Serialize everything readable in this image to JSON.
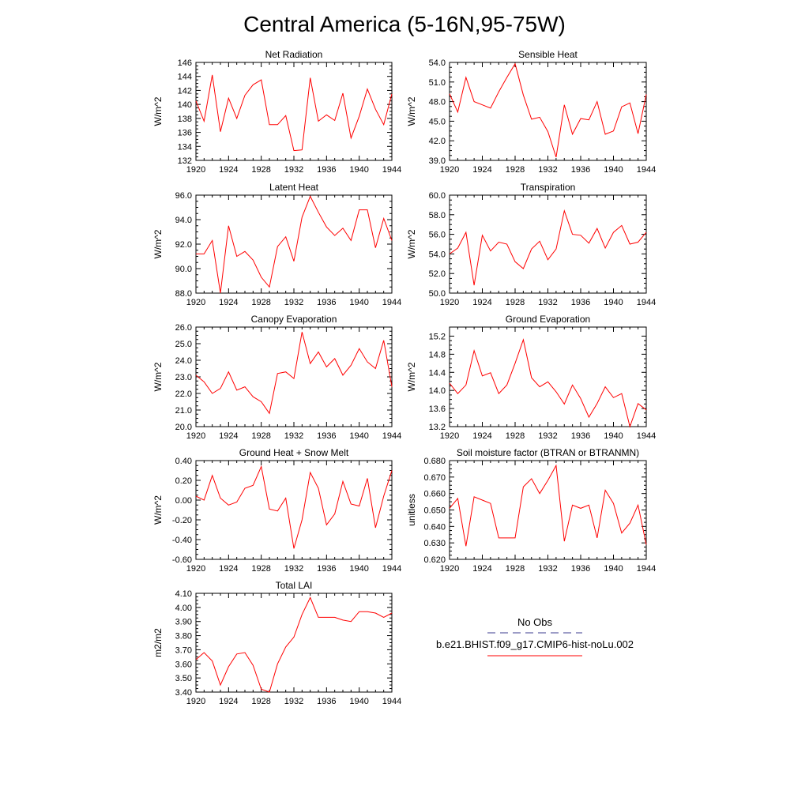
{
  "title": "Central America (5-16N,95-75W)",
  "colors": {
    "model": "#ff0000",
    "obs": "#3b3b8f",
    "axis": "#000000"
  },
  "legend": {
    "obs_label": "No Obs",
    "model_label": "b.e21.BHIST.f09_g17.CMIP6-hist-noLu.002"
  },
  "chart_data": [
    {
      "type": "line",
      "title": "Net Radiation",
      "ylabel": "W/m^2",
      "xlim": [
        1920,
        1944
      ],
      "ylim": [
        132,
        146
      ],
      "xticks": [
        1920,
        1924,
        1928,
        1932,
        1936,
        1940,
        1944
      ],
      "xtick_labels": [
        "1920",
        "1924",
        "1928",
        "1932",
        "1936",
        "1940",
        "1944"
      ],
      "yticks": [
        132,
        134,
        136,
        138,
        140,
        142,
        144,
        146
      ],
      "ytick_labels": [
        "132",
        "134",
        "136",
        "138",
        "140",
        "142",
        "144",
        "146"
      ],
      "x": [
        1920,
        1921,
        1922,
        1923,
        1924,
        1925,
        1926,
        1927,
        1928,
        1929,
        1930,
        1931,
        1932,
        1933,
        1934,
        1935,
        1936,
        1937,
        1938,
        1939,
        1940,
        1941,
        1942,
        1943,
        1944
      ],
      "series": [
        {
          "name": "b.e21.BHIST.f09_g17.CMIP6-hist-noLu.002",
          "values": [
            140.5,
            137.6,
            144.2,
            136.1,
            140.9,
            138.0,
            141.3,
            142.8,
            143.5,
            137.1,
            137.1,
            138.4,
            133.4,
            133.5,
            143.8,
            137.6,
            138.5,
            137.7,
            141.6,
            135.2,
            138.3,
            142.2,
            139.3,
            137.1,
            141.5
          ]
        }
      ]
    },
    {
      "type": "line",
      "title": "Sensible Heat",
      "ylabel": "W/m^2",
      "xlim": [
        1920,
        1944
      ],
      "ylim": [
        39.0,
        54.0
      ],
      "xticks": [
        1920,
        1924,
        1928,
        1932,
        1936,
        1940,
        1944
      ],
      "xtick_labels": [
        "1920",
        "1924",
        "1928",
        "1932",
        "1936",
        "1940",
        "1944"
      ],
      "yticks": [
        39.0,
        42.0,
        45.0,
        48.0,
        51.0,
        54.0
      ],
      "ytick_labels": [
        "39.0",
        "42.0",
        "45.0",
        "48.0",
        "51.0",
        "54.0"
      ],
      "x": [
        1920,
        1921,
        1922,
        1923,
        1924,
        1925,
        1926,
        1927,
        1928,
        1929,
        1930,
        1931,
        1932,
        1933,
        1934,
        1935,
        1936,
        1937,
        1938,
        1939,
        1940,
        1941,
        1942,
        1943,
        1944
      ],
      "series": [
        {
          "name": "b.e21.BHIST.f09_g17.CMIP6-hist-noLu.002",
          "values": [
            49.2,
            46.4,
            51.7,
            48.0,
            47.5,
            47.0,
            49.5,
            51.7,
            53.8,
            49.0,
            45.3,
            45.6,
            43.4,
            39.5,
            47.5,
            43.0,
            45.4,
            45.2,
            48.0,
            43.0,
            43.5,
            47.2,
            47.8,
            43.1,
            49.1
          ]
        }
      ]
    },
    {
      "type": "line",
      "title": "Latent Heat",
      "ylabel": "W/m^2",
      "xlim": [
        1920,
        1944
      ],
      "ylim": [
        88.0,
        96.0
      ],
      "xticks": [
        1920,
        1924,
        1928,
        1932,
        1936,
        1940,
        1944
      ],
      "xtick_labels": [
        "1920",
        "1924",
        "1928",
        "1932",
        "1936",
        "1940",
        "1944"
      ],
      "yticks": [
        88.0,
        90.0,
        92.0,
        94.0,
        96.0
      ],
      "ytick_labels": [
        "88.0",
        "90.0",
        "92.0",
        "94.0",
        "96.0"
      ],
      "x": [
        1920,
        1921,
        1922,
        1923,
        1924,
        1925,
        1926,
        1927,
        1928,
        1929,
        1930,
        1931,
        1932,
        1933,
        1934,
        1935,
        1936,
        1937,
        1938,
        1939,
        1940,
        1941,
        1942,
        1943,
        1944
      ],
      "series": [
        {
          "name": "b.e21.BHIST.f09_g17.CMIP6-hist-noLu.002",
          "values": [
            91.2,
            91.2,
            92.3,
            88.0,
            93.5,
            91.0,
            91.4,
            90.7,
            89.3,
            88.5,
            91.8,
            92.6,
            90.6,
            94.2,
            95.9,
            94.6,
            93.4,
            92.7,
            93.3,
            92.3,
            94.8,
            94.8,
            91.7,
            94.1,
            92.3
          ]
        }
      ]
    },
    {
      "type": "line",
      "title": "Transpiration",
      "ylabel": "W/m^2",
      "xlim": [
        1920,
        1944
      ],
      "ylim": [
        50.0,
        60.0
      ],
      "xticks": [
        1920,
        1924,
        1928,
        1932,
        1936,
        1940,
        1944
      ],
      "xtick_labels": [
        "1920",
        "1924",
        "1928",
        "1932",
        "1936",
        "1940",
        "1944"
      ],
      "yticks": [
        50.0,
        52.0,
        54.0,
        56.0,
        58.0,
        60.0
      ],
      "ytick_labels": [
        "50.0",
        "52.0",
        "54.0",
        "56.0",
        "58.0",
        "60.0"
      ],
      "x": [
        1920,
        1921,
        1922,
        1923,
        1924,
        1925,
        1926,
        1927,
        1928,
        1929,
        1930,
        1931,
        1932,
        1933,
        1934,
        1935,
        1936,
        1937,
        1938,
        1939,
        1940,
        1941,
        1942,
        1943,
        1944
      ],
      "series": [
        {
          "name": "b.e21.BHIST.f09_g17.CMIP6-hist-noLu.002",
          "values": [
            54.0,
            54.6,
            56.2,
            50.8,
            55.9,
            54.3,
            55.2,
            55.0,
            53.2,
            52.5,
            54.5,
            55.3,
            53.4,
            54.5,
            58.4,
            56.0,
            55.9,
            55.1,
            56.6,
            54.6,
            56.2,
            56.9,
            55.0,
            55.2,
            56.2
          ]
        }
      ]
    },
    {
      "type": "line",
      "title": "Canopy Evaporation",
      "ylabel": "W/m^2",
      "xlim": [
        1920,
        1944
      ],
      "ylim": [
        20.0,
        26.0
      ],
      "xticks": [
        1920,
        1924,
        1928,
        1932,
        1936,
        1940,
        1944
      ],
      "xtick_labels": [
        "1920",
        "1924",
        "1928",
        "1932",
        "1936",
        "1940",
        "1944"
      ],
      "yticks": [
        20.0,
        21.0,
        22.0,
        23.0,
        24.0,
        25.0,
        26.0
      ],
      "ytick_labels": [
        "20.0",
        "21.0",
        "22.0",
        "23.0",
        "24.0",
        "25.0",
        "26.0"
      ],
      "x": [
        1920,
        1921,
        1922,
        1923,
        1924,
        1925,
        1926,
        1927,
        1928,
        1929,
        1930,
        1931,
        1932,
        1933,
        1934,
        1935,
        1936,
        1937,
        1938,
        1939,
        1940,
        1941,
        1942,
        1943,
        1944
      ],
      "series": [
        {
          "name": "b.e21.BHIST.f09_g17.CMIP6-hist-noLu.002",
          "values": [
            23.1,
            22.7,
            22.0,
            22.3,
            23.3,
            22.2,
            22.4,
            21.8,
            21.5,
            20.8,
            23.2,
            23.3,
            22.9,
            25.7,
            23.8,
            24.5,
            23.6,
            24.1,
            23.1,
            23.7,
            24.7,
            23.9,
            23.5,
            25.2,
            22.4
          ]
        }
      ]
    },
    {
      "type": "line",
      "title": "Ground Evaporation",
      "ylabel": "W/m^2",
      "xlim": [
        1920,
        1944
      ],
      "ylim": [
        13.2,
        15.4
      ],
      "xticks": [
        1920,
        1924,
        1928,
        1932,
        1936,
        1940,
        1944
      ],
      "xtick_labels": [
        "1920",
        "1924",
        "1928",
        "1932",
        "1936",
        "1940",
        "1944"
      ],
      "yticks": [
        13.2,
        13.6,
        14.0,
        14.4,
        14.8,
        15.2
      ],
      "ytick_labels": [
        "13.2",
        "13.6",
        "14.0",
        "14.4",
        "14.8",
        "15.2"
      ],
      "x": [
        1920,
        1921,
        1922,
        1923,
        1924,
        1925,
        1926,
        1927,
        1928,
        1929,
        1930,
        1931,
        1932,
        1933,
        1934,
        1935,
        1936,
        1937,
        1938,
        1939,
        1940,
        1941,
        1942,
        1943,
        1944
      ],
      "series": [
        {
          "name": "b.e21.BHIST.f09_g17.CMIP6-hist-noLu.002",
          "values": [
            14.16,
            13.93,
            14.12,
            14.88,
            14.32,
            14.39,
            13.93,
            14.12,
            14.6,
            15.12,
            14.28,
            14.08,
            14.19,
            13.97,
            13.7,
            14.12,
            13.82,
            13.41,
            13.71,
            14.08,
            13.84,
            13.93,
            13.2,
            13.71,
            13.57
          ]
        }
      ]
    },
    {
      "type": "line",
      "title": "Ground Heat + Snow Melt",
      "ylabel": "W/m^2",
      "xlim": [
        1920,
        1944
      ],
      "ylim": [
        -0.6,
        0.4
      ],
      "xticks": [
        1920,
        1924,
        1928,
        1932,
        1936,
        1940,
        1944
      ],
      "xtick_labels": [
        "1920",
        "1924",
        "1928",
        "1932",
        "1936",
        "1940",
        "1944"
      ],
      "yticks": [
        -0.6,
        -0.4,
        -0.2,
        0.0,
        0.2,
        0.4
      ],
      "ytick_labels": [
        "-0.60",
        "-0.40",
        "-0.20",
        "0.00",
        "0.20",
        "0.40"
      ],
      "x": [
        1920,
        1921,
        1922,
        1923,
        1924,
        1925,
        1926,
        1927,
        1928,
        1929,
        1930,
        1931,
        1932,
        1933,
        1934,
        1935,
        1936,
        1937,
        1938,
        1939,
        1940,
        1941,
        1942,
        1943,
        1944
      ],
      "series": [
        {
          "name": "b.e21.BHIST.f09_g17.CMIP6-hist-noLu.002",
          "values": [
            0.04,
            0.0,
            0.25,
            0.02,
            -0.05,
            -0.02,
            0.12,
            0.15,
            0.34,
            -0.09,
            -0.11,
            0.02,
            -0.49,
            -0.2,
            0.28,
            0.12,
            -0.25,
            -0.14,
            0.19,
            -0.04,
            -0.06,
            0.22,
            -0.28,
            0.04,
            0.3
          ]
        }
      ]
    },
    {
      "type": "line",
      "title": "Soil moisture factor (BTRAN or BTRANMN)",
      "ylabel": "unitless",
      "xlim": [
        1920,
        1944
      ],
      "ylim": [
        0.62,
        0.68
      ],
      "xticks": [
        1920,
        1924,
        1928,
        1932,
        1936,
        1940,
        1944
      ],
      "xtick_labels": [
        "1920",
        "1924",
        "1928",
        "1932",
        "1936",
        "1940",
        "1944"
      ],
      "yticks": [
        0.62,
        0.63,
        0.64,
        0.65,
        0.66,
        0.67,
        0.68
      ],
      "ytick_labels": [
        "0.620",
        "0.630",
        "0.640",
        "0.650",
        "0.660",
        "0.670",
        "0.680"
      ],
      "x": [
        1920,
        1921,
        1922,
        1923,
        1924,
        1925,
        1926,
        1927,
        1928,
        1929,
        1930,
        1931,
        1932,
        1933,
        1934,
        1935,
        1936,
        1937,
        1938,
        1939,
        1940,
        1941,
        1942,
        1943,
        1944
      ],
      "series": [
        {
          "name": "b.e21.BHIST.f09_g17.CMIP6-hist-noLu.002",
          "values": [
            0.651,
            0.657,
            0.628,
            0.658,
            0.656,
            0.654,
            0.633,
            0.633,
            0.633,
            0.664,
            0.669,
            0.66,
            0.668,
            0.677,
            0.631,
            0.653,
            0.651,
            0.653,
            0.633,
            0.662,
            0.654,
            0.636,
            0.642,
            0.653,
            0.629
          ]
        }
      ]
    },
    {
      "type": "line",
      "title": "Total LAI",
      "ylabel": "m2/m2",
      "xlim": [
        1920,
        1944
      ],
      "ylim": [
        3.4,
        4.1
      ],
      "xticks": [
        1920,
        1924,
        1928,
        1932,
        1936,
        1940,
        1944
      ],
      "xtick_labels": [
        "1920",
        "1924",
        "1928",
        "1932",
        "1936",
        "1940",
        "1944"
      ],
      "yticks": [
        3.4,
        3.5,
        3.6,
        3.7,
        3.8,
        3.9,
        4.0,
        4.1
      ],
      "ytick_labels": [
        "3.40",
        "3.50",
        "3.60",
        "3.70",
        "3.80",
        "3.90",
        "4.00",
        "4.10"
      ],
      "x": [
        1920,
        1921,
        1922,
        1923,
        1924,
        1925,
        1926,
        1927,
        1928,
        1929,
        1930,
        1931,
        1932,
        1933,
        1934,
        1935,
        1936,
        1937,
        1938,
        1939,
        1940,
        1941,
        1942,
        1943,
        1944
      ],
      "series": [
        {
          "name": "b.e21.BHIST.f09_g17.CMIP6-hist-noLu.002",
          "values": [
            3.63,
            3.68,
            3.62,
            3.45,
            3.58,
            3.67,
            3.68,
            3.59,
            3.42,
            3.4,
            3.6,
            3.72,
            3.79,
            3.95,
            4.07,
            3.93,
            3.93,
            3.93,
            3.91,
            3.9,
            3.97,
            3.97,
            3.96,
            3.93,
            3.96
          ]
        }
      ]
    }
  ]
}
